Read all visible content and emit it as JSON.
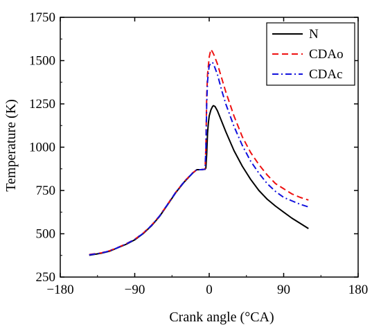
{
  "chart_data": {
    "type": "line",
    "title": "",
    "xlabel": "Crank angle (°CA)",
    "ylabel": "Temperature (K)",
    "xlim": [
      -180,
      180
    ],
    "ylim": [
      250,
      1750
    ],
    "xticks": [
      -180,
      -90,
      0,
      90,
      180
    ],
    "xtick_labels": [
      "−180",
      "−90",
      "0",
      "90",
      "180"
    ],
    "yticks": [
      250,
      500,
      750,
      1000,
      1250,
      1500,
      1750
    ],
    "ytick_labels": [
      "250",
      "500",
      "750",
      "1000",
      "1250",
      "1500",
      "1750"
    ],
    "grid": false,
    "legend_position": "top-right",
    "series": [
      {
        "name": "N",
        "color": "#000000",
        "dash": "solid",
        "points": [
          [
            -145,
            376
          ],
          [
            -130,
            388
          ],
          [
            -120,
            400
          ],
          [
            -110,
            420
          ],
          [
            -100,
            440
          ],
          [
            -90,
            465
          ],
          [
            -80,
            500
          ],
          [
            -70,
            545
          ],
          [
            -60,
            600
          ],
          [
            -50,
            670
          ],
          [
            -40,
            740
          ],
          [
            -30,
            800
          ],
          [
            -20,
            850
          ],
          [
            -15,
            870
          ],
          [
            -10,
            870
          ],
          [
            -6,
            872
          ],
          [
            -5,
            872
          ],
          [
            -4,
            880
          ],
          [
            -3,
            960
          ],
          [
            -2,
            1080
          ],
          [
            -1,
            1140
          ],
          [
            0,
            1180
          ],
          [
            2,
            1215
          ],
          [
            4,
            1235
          ],
          [
            5,
            1240
          ],
          [
            7,
            1235
          ],
          [
            10,
            1210
          ],
          [
            15,
            1150
          ],
          [
            20,
            1090
          ],
          [
            30,
            980
          ],
          [
            40,
            890
          ],
          [
            50,
            815
          ],
          [
            60,
            750
          ],
          [
            70,
            700
          ],
          [
            80,
            660
          ],
          [
            90,
            625
          ],
          [
            100,
            590
          ],
          [
            110,
            560
          ],
          [
            120,
            530
          ]
        ]
      },
      {
        "name": "CDAo",
        "color": "#ee1111",
        "dash": "dashed",
        "points": [
          [
            -145,
            380
          ],
          [
            -130,
            390
          ],
          [
            -120,
            403
          ],
          [
            -110,
            422
          ],
          [
            -100,
            443
          ],
          [
            -90,
            468
          ],
          [
            -80,
            503
          ],
          [
            -70,
            548
          ],
          [
            -60,
            603
          ],
          [
            -50,
            673
          ],
          [
            -40,
            743
          ],
          [
            -30,
            803
          ],
          [
            -20,
            852
          ],
          [
            -15,
            870
          ],
          [
            -10,
            870
          ],
          [
            -6,
            872
          ],
          [
            -5,
            875
          ],
          [
            -4,
            1000
          ],
          [
            -3,
            1300
          ],
          [
            -2,
            1420
          ],
          [
            -1,
            1470
          ],
          [
            0,
            1520
          ],
          [
            2,
            1565
          ],
          [
            4,
            1550
          ],
          [
            6,
            1530
          ],
          [
            10,
            1480
          ],
          [
            15,
            1400
          ],
          [
            20,
            1320
          ],
          [
            30,
            1180
          ],
          [
            40,
            1060
          ],
          [
            50,
            970
          ],
          [
            60,
            900
          ],
          [
            70,
            840
          ],
          [
            80,
            790
          ],
          [
            90,
            760
          ],
          [
            100,
            730
          ],
          [
            110,
            710
          ],
          [
            120,
            695
          ]
        ]
      },
      {
        "name": "CDAc",
        "color": "#1111dd",
        "dash": "dashdot",
        "points": [
          [
            -145,
            378
          ],
          [
            -130,
            389
          ],
          [
            -120,
            402
          ],
          [
            -110,
            421
          ],
          [
            -100,
            442
          ],
          [
            -90,
            467
          ],
          [
            -80,
            502
          ],
          [
            -70,
            547
          ],
          [
            -60,
            602
          ],
          [
            -50,
            672
          ],
          [
            -40,
            742
          ],
          [
            -30,
            802
          ],
          [
            -20,
            851
          ],
          [
            -15,
            870
          ],
          [
            -10,
            870
          ],
          [
            -6,
            872
          ],
          [
            -5,
            874
          ],
          [
            -4,
            990
          ],
          [
            -3,
            1250
          ],
          [
            -2,
            1380
          ],
          [
            -1,
            1430
          ],
          [
            0,
            1470
          ],
          [
            2,
            1485
          ],
          [
            4,
            1490
          ],
          [
            6,
            1470
          ],
          [
            10,
            1420
          ],
          [
            15,
            1330
          ],
          [
            20,
            1250
          ],
          [
            30,
            1120
          ],
          [
            40,
            1010
          ],
          [
            50,
            920
          ],
          [
            60,
            850
          ],
          [
            70,
            790
          ],
          [
            80,
            745
          ],
          [
            90,
            710
          ],
          [
            100,
            690
          ],
          [
            110,
            670
          ],
          [
            120,
            655
          ]
        ]
      }
    ]
  }
}
